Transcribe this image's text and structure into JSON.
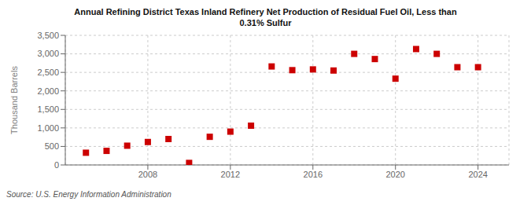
{
  "chart_data": {
    "type": "scatter",
    "title": "Annual Refining District Texas Inland Refinery Net Production of Residual Fuel Oil, Less than\n0.31% Sulfur",
    "y_label": "Thousand Barrels",
    "annotation": "Source: U.S. Energy Information Administration",
    "x": [
      2005,
      2006,
      2007,
      2008,
      2009,
      2010,
      2011,
      2012,
      2013,
      2014,
      2015,
      2016,
      2017,
      2018,
      2019,
      2020,
      2021,
      2022,
      2023,
      2024
    ],
    "values": [
      330,
      380,
      520,
      620,
      700,
      55,
      760,
      900,
      1060,
      2660,
      2560,
      2580,
      2550,
      3000,
      2860,
      2330,
      3130,
      3000,
      2640,
      2640
    ],
    "color": "#cc0000",
    "marker": "square",
    "xlim": [
      2004.0,
      2025.5
    ],
    "xticks": [
      2008,
      2012,
      2016,
      2020,
      2024
    ],
    "ylim": [
      0,
      3500
    ],
    "yticks": [
      0,
      500,
      {
        "value": 1000,
        "label": "1,000"
      },
      {
        "value": 1500,
        "label": "1,500"
      },
      {
        "value": 2000,
        "label": "2,000"
      },
      {
        "value": 2500,
        "label": "2,500"
      },
      {
        "value": 3000,
        "label": "3,000"
      },
      {
        "value": 3500,
        "label": "3,500"
      }
    ],
    "grid": true
  }
}
